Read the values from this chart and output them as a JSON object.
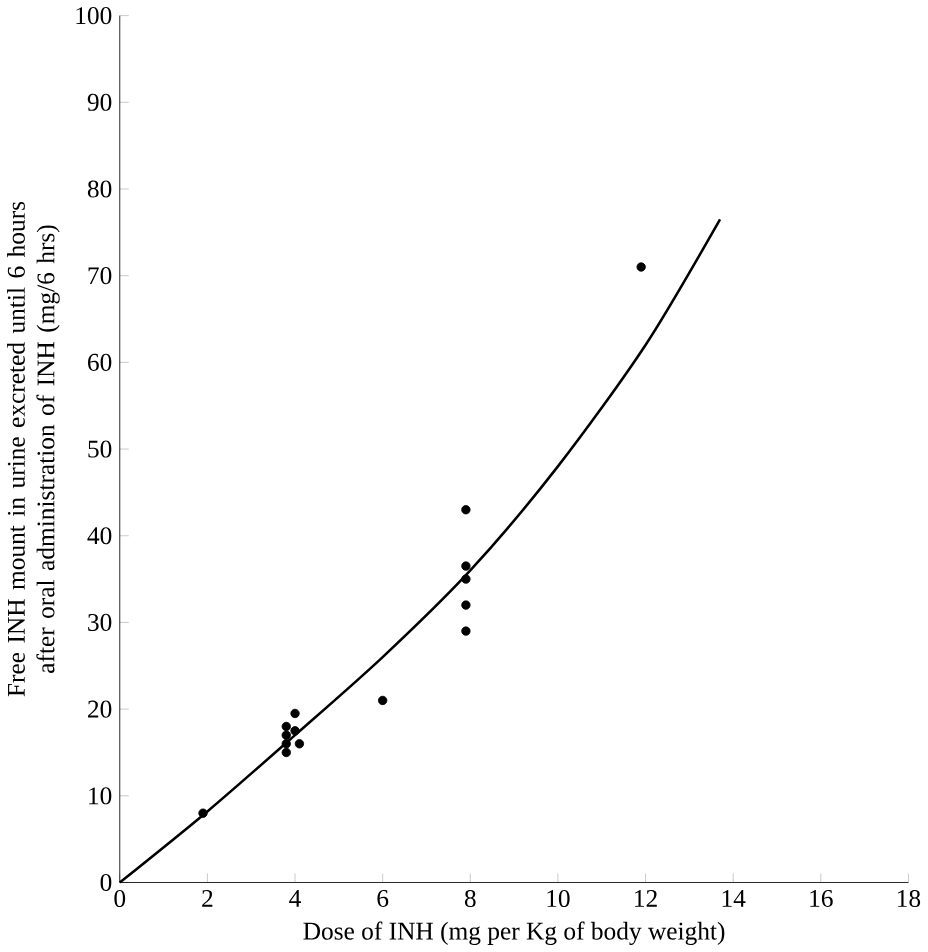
{
  "chart_data": {
    "type": "scatter",
    "xlabel": "Dose of INH (mg per Kg of body weight)",
    "ylabel": "Free INH mount in urine excreted until 6 hours after oral administration of INH (mg/6 hrs)",
    "xlim": [
      0,
      18
    ],
    "ylim": [
      0,
      100
    ],
    "xticks": [
      0,
      2,
      4,
      6,
      8,
      10,
      12,
      14,
      16,
      18
    ],
    "yticks": [
      0,
      10,
      20,
      30,
      40,
      50,
      60,
      70,
      80,
      90,
      100
    ],
    "grid": false,
    "series": [
      {
        "color": "#000000",
        "marker": "circle",
        "x": [
          1.9,
          3.8,
          3.8,
          3.8,
          3.8,
          4,
          4,
          4.1,
          6,
          7.9,
          7.9,
          7.9,
          7.9,
          7.9,
          11.9
        ],
        "values": [
          8,
          15,
          16,
          17,
          18,
          19.5,
          17.5,
          16,
          21,
          43,
          36.5,
          35,
          32,
          29,
          71
        ]
      },
      {
        "type": "line",
        "color": "#000000",
        "marker": "none",
        "line_style": "solid",
        "x": [
          0,
          2,
          4,
          6,
          8,
          10,
          12,
          13.7
        ],
        "values": [
          0,
          8.2,
          17,
          26,
          36,
          48,
          62,
          76.5
        ]
      }
    ]
  }
}
